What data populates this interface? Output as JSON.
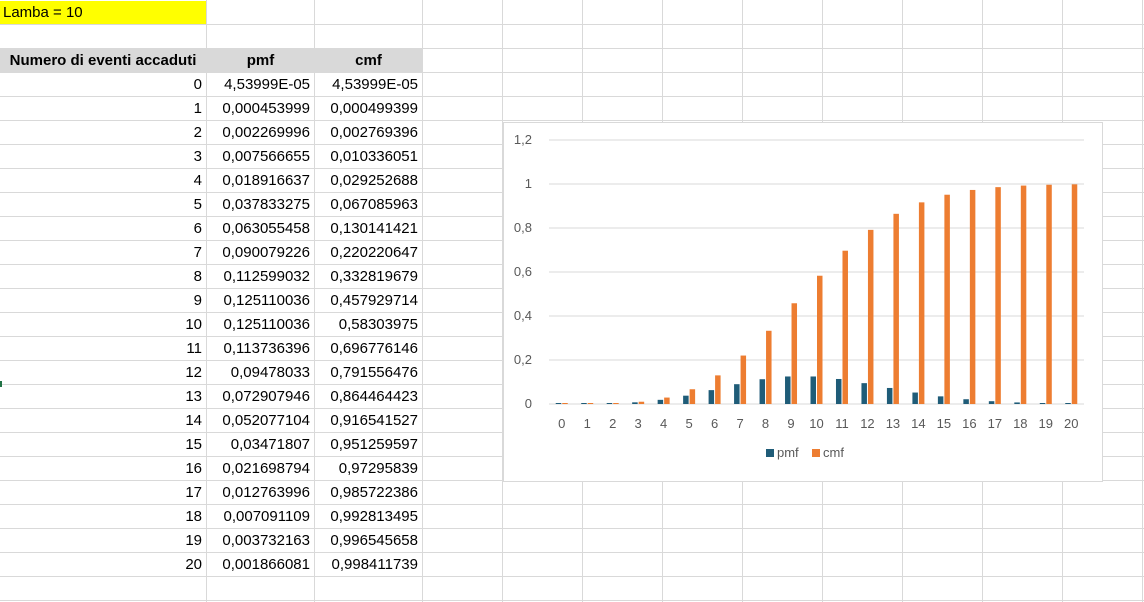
{
  "sheet": {
    "title_cell": "Lamba = 10",
    "headers": [
      "Numero di eventi accaduti",
      "pmf",
      "cmf"
    ],
    "rows": [
      [
        "0",
        "4,53999E-05",
        "4,53999E-05"
      ],
      [
        "1",
        "0,000453999",
        "0,000499399"
      ],
      [
        "2",
        "0,002269996",
        "0,002769396"
      ],
      [
        "3",
        "0,007566655",
        "0,010336051"
      ],
      [
        "4",
        "0,018916637",
        "0,029252688"
      ],
      [
        "5",
        "0,037833275",
        "0,067085963"
      ],
      [
        "6",
        "0,063055458",
        "0,130141421"
      ],
      [
        "7",
        "0,090079226",
        "0,220220647"
      ],
      [
        "8",
        "0,112599032",
        "0,332819679"
      ],
      [
        "9",
        "0,125110036",
        "0,457929714"
      ],
      [
        "10",
        "0,125110036",
        "0,58303975"
      ],
      [
        "11",
        "0,113736396",
        "0,696776146"
      ],
      [
        "12",
        "0,09478033",
        "0,791556476"
      ],
      [
        "13",
        "0,072907946",
        "0,864464423"
      ],
      [
        "14",
        "0,052077104",
        "0,916541527"
      ],
      [
        "15",
        "0,03471807",
        "0,951259597"
      ],
      [
        "16",
        "0,021698794",
        "0,97295839"
      ],
      [
        "17",
        "0,012763996",
        "0,985722386"
      ],
      [
        "18",
        "0,007091109",
        "0,992813495"
      ],
      [
        "19",
        "0,003732163",
        "0,996545658"
      ],
      [
        "20",
        "0,001866081",
        "0,998411739"
      ]
    ]
  },
  "chart_data": {
    "type": "bar",
    "categories": [
      "0",
      "1",
      "2",
      "3",
      "4",
      "5",
      "6",
      "7",
      "8",
      "9",
      "10",
      "11",
      "12",
      "13",
      "14",
      "15",
      "16",
      "17",
      "18",
      "19",
      "20"
    ],
    "series": [
      {
        "name": "pmf",
        "color": "#1f5c78",
        "values": [
          4.54e-05,
          0.000454,
          0.00227,
          0.007567,
          0.018917,
          0.037833,
          0.063055,
          0.090079,
          0.112599,
          0.12511,
          0.12511,
          0.113736,
          0.09478,
          0.072908,
          0.052077,
          0.034718,
          0.021699,
          0.012764,
          0.007091,
          0.003732,
          0.001866
        ]
      },
      {
        "name": "cmf",
        "color": "#ed7d31",
        "values": [
          4.54e-05,
          0.000499,
          0.002769,
          0.010336,
          0.029253,
          0.067086,
          0.130141,
          0.220221,
          0.33282,
          0.45793,
          0.58304,
          0.696776,
          0.791556,
          0.864464,
          0.916542,
          0.95126,
          0.972958,
          0.985722,
          0.992813,
          0.996546,
          0.998412
        ]
      }
    ],
    "y_ticks": [
      "0",
      "0,2",
      "0,4",
      "0,6",
      "0,8",
      "1",
      "1,2"
    ],
    "ylim": [
      0,
      1.2
    ],
    "grid": true,
    "legend_position": "bottom"
  }
}
